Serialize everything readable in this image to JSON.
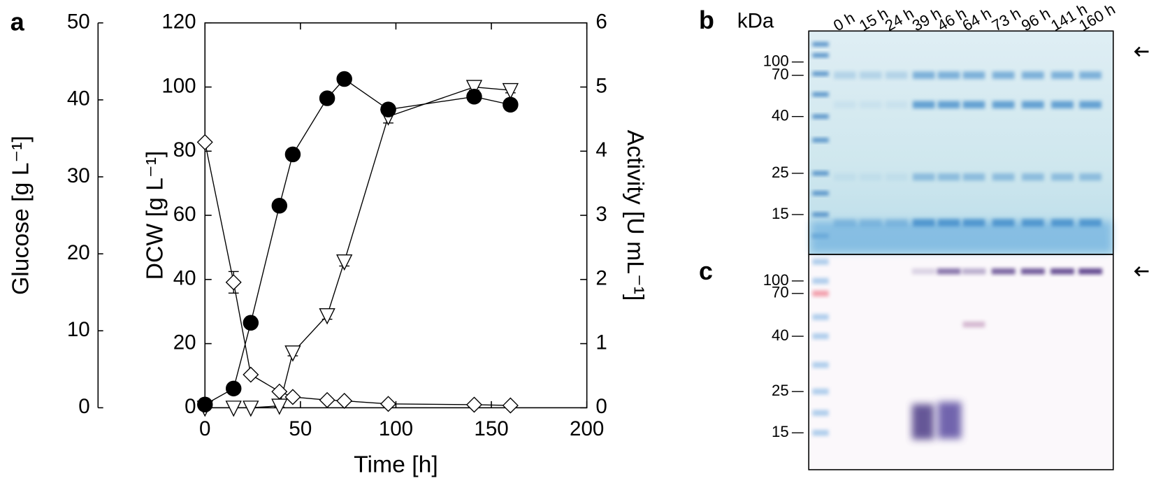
{
  "chart_data": {
    "type": "line",
    "panel_label": "a",
    "xlabel": "Time [h]",
    "ylabel": "DCW [g L⁻¹]",
    "y2label": "Activity [U mL⁻¹]",
    "y3label": "Glucose [g L⁻¹]",
    "x": [
      0,
      15,
      24,
      39,
      46,
      64,
      73,
      96,
      141,
      160
    ],
    "xlim": [
      0,
      200
    ],
    "xticks": [
      0,
      50,
      100,
      150,
      200
    ],
    "ylim": [
      0,
      120
    ],
    "yticks": [
      0,
      20,
      40,
      60,
      80,
      100,
      120
    ],
    "y2lim": [
      0,
      6
    ],
    "y2ticks": [
      0,
      1,
      2,
      3,
      4,
      5,
      6
    ],
    "y3lim": [
      0,
      50
    ],
    "y3ticks": [
      0,
      10,
      20,
      30,
      40,
      50
    ],
    "series": [
      {
        "axis": "y3",
        "marker": "diamond",
        "filled": false,
        "color": "#000000",
        "values": [
          34.5,
          16.3,
          4.3,
          2.1,
          1.4,
          1.0,
          0.9,
          0.5,
          0.4,
          0.3
        ],
        "errors": [
          0.3,
          1.4,
          0.3,
          0.2,
          0.1,
          0.1,
          0.1,
          0.1,
          0.1,
          0.1
        ]
      },
      {
        "axis": "y2",
        "marker": "triangle-down",
        "filled": false,
        "color": "#000000",
        "values": [
          0,
          0,
          0,
          0.03,
          0.86,
          1.44,
          2.28,
          4.54,
          5.0,
          4.95
        ],
        "errors": [
          0,
          0,
          0,
          0.02,
          0.05,
          0.06,
          0.07,
          0.1,
          0.05,
          0.04
        ]
      },
      {
        "axis": "y",
        "marker": "circle",
        "filled": true,
        "color": "#000000",
        "values": [
          1,
          6,
          26.5,
          63,
          79,
          96.5,
          102.5,
          93,
          97,
          94.5
        ]
      }
    ]
  },
  "panels": {
    "b": {
      "label": "b",
      "unit": "kDa",
      "lanes": [
        "0 h",
        "15 h",
        "24 h",
        "39 h",
        "46 h",
        "64 h",
        "73 h",
        "96 h",
        "141 h",
        "160 h"
      ],
      "markers": [
        100,
        70,
        40,
        25,
        15
      ]
    },
    "c": {
      "label": "c",
      "markers": [
        100,
        70,
        40,
        25,
        15
      ]
    }
  }
}
